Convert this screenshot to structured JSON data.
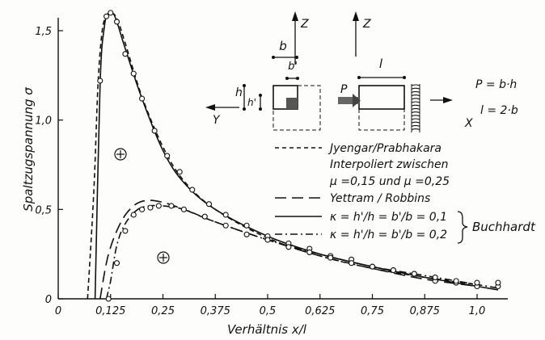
{
  "chart_data": {
    "type": "line",
    "xlabel": "Verhältnis x/l",
    "ylabel": "Spaltzugspannung σ",
    "xlim": [
      0,
      1.07
    ],
    "ylim": [
      0,
      1.65
    ],
    "xticks": [
      "0",
      "0,125",
      "0,25",
      "0,375",
      "0,5",
      "0,625",
      "0,75",
      "0,875",
      "1,0"
    ],
    "yticks": [
      "0",
      "0,5",
      "1,0",
      "1,5"
    ],
    "series": [
      {
        "name": "Jyengar/Prabhakara Interpoliert zwischen μ=0,15 und μ=0,25",
        "style": "dashed",
        "x": [
          0.07,
          0.085,
          0.095,
          0.105,
          0.115,
          0.125,
          0.14,
          0.16,
          0.2,
          0.25,
          0.3,
          0.375,
          0.5,
          0.625,
          0.75,
          0.875,
          1.0
        ],
        "y": [
          0.0,
          0.6,
          1.2,
          1.5,
          1.58,
          1.6,
          1.57,
          1.43,
          1.13,
          0.85,
          0.66,
          0.5,
          0.34,
          0.24,
          0.17,
          0.12,
          0.08
        ]
      },
      {
        "name": "Yettram/Robbins",
        "style": "long-dash",
        "x": [
          0.1,
          0.12,
          0.15,
          0.18,
          0.21,
          0.25,
          0.3,
          0.375,
          0.5,
          0.625,
          0.75,
          0.875,
          1.0
        ],
        "y": [
          0.0,
          0.25,
          0.43,
          0.52,
          0.55,
          0.54,
          0.5,
          0.43,
          0.33,
          0.24,
          0.17,
          0.11,
          0.07
        ]
      },
      {
        "name": "κ = h'/h = b'/b = 0,1",
        "style": "solid",
        "x": [
          0.088,
          0.1,
          0.11,
          0.12,
          0.13,
          0.14,
          0.16,
          0.2,
          0.25,
          0.3,
          0.375,
          0.5,
          0.625,
          0.75,
          0.875,
          1.0,
          1.05
        ],
        "y": [
          0.0,
          1.2,
          1.52,
          1.6,
          1.6,
          1.55,
          1.4,
          1.12,
          0.83,
          0.65,
          0.5,
          0.35,
          0.25,
          0.18,
          0.12,
          0.07,
          0.05
        ]
      },
      {
        "name": "κ = h'/h = b'/b = 0,2",
        "style": "dash-dot",
        "x": [
          0.115,
          0.125,
          0.14,
          0.16,
          0.19,
          0.22,
          0.25,
          0.3,
          0.375,
          0.5,
          0.625,
          0.75,
          0.875,
          1.0,
          1.05
        ],
        "y": [
          0.0,
          0.1,
          0.3,
          0.42,
          0.5,
          0.52,
          0.52,
          0.5,
          0.43,
          0.33,
          0.25,
          0.18,
          0.13,
          0.08,
          0.06
        ]
      }
    ],
    "markers": [
      {
        "on": "κ = h'/h = b'/b = 0,1",
        "x": [
          0.1,
          0.115,
          0.125,
          0.14,
          0.16,
          0.18,
          0.2,
          0.23,
          0.26,
          0.29,
          0.32,
          0.36,
          0.4,
          0.45,
          0.5,
          0.55,
          0.6,
          0.65,
          0.7,
          0.75,
          0.8,
          0.85,
          0.9,
          0.95,
          1.0,
          1.05
        ],
        "y": [
          1.22,
          1.58,
          1.6,
          1.55,
          1.37,
          1.26,
          1.12,
          0.94,
          0.8,
          0.71,
          0.61,
          0.53,
          0.47,
          0.41,
          0.35,
          0.31,
          0.28,
          0.24,
          0.22,
          0.18,
          0.16,
          0.14,
          0.1,
          0.09,
          0.07,
          0.07
        ]
      },
      {
        "on": "κ = h'/h = b'/b = 0,2",
        "x": [
          0.12,
          0.14,
          0.16,
          0.18,
          0.2,
          0.22,
          0.24,
          0.27,
          0.3,
          0.35,
          0.4,
          0.45,
          0.5,
          0.55,
          0.6,
          0.65,
          0.7,
          0.75,
          0.8,
          0.85,
          0.9,
          0.95,
          1.0,
          1.05
        ],
        "y": [
          0.0,
          0.2,
          0.38,
          0.47,
          0.5,
          0.51,
          0.52,
          0.52,
          0.5,
          0.46,
          0.41,
          0.36,
          0.33,
          0.29,
          0.26,
          0.23,
          0.2,
          0.18,
          0.16,
          0.14,
          0.12,
          0.1,
          0.09,
          0.09
        ]
      }
    ],
    "legend": {
      "placement": "right",
      "entries": [
        {
          "style": "dashed",
          "lines": [
            "Jyengar/Prabhakara",
            "Interpoliert zwischen",
            "μ =0,15 und μ =0,25"
          ]
        },
        {
          "style": "long-dash",
          "lines": [
            "Yettram / Robbins"
          ]
        },
        {
          "style": "solid",
          "lines": [
            "κ = h'/h = b'/b = 0,1"
          ]
        },
        {
          "style": "dash-dot",
          "lines": [
            "κ = h'/h = b'/b = 0,2"
          ]
        }
      ],
      "group_label": "Buchhardt"
    },
    "annotations": [
      "⊕",
      "⊕"
    ],
    "diagram": {
      "z_left": "Z",
      "z_right": "Z",
      "b": "b",
      "b_prime": "b'",
      "h": "h",
      "h_prime": "h'",
      "y_axis": "Y",
      "p": "P",
      "l": "l",
      "x_axis": "X",
      "eq1": "P = b·h",
      "eq2": "l = 2·b"
    }
  }
}
